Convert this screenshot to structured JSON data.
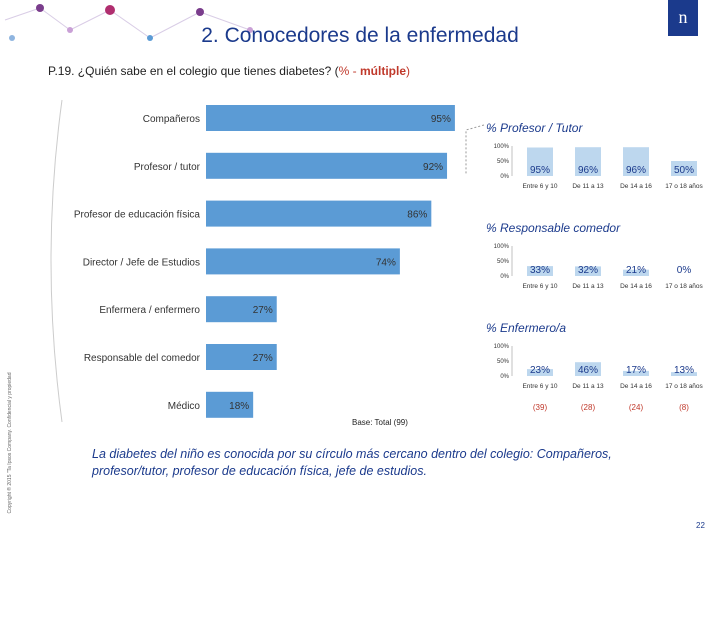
{
  "header": {
    "title": "2. Conocedores de la enfermedad",
    "logo_text": "n"
  },
  "question": {
    "prefix": "P.19. ¿Quién sabe en el colegio que tienes diabetes? (",
    "pct": "% -",
    "multiple": "múltiple",
    "suffix": ")"
  },
  "chart_data": [
    {
      "type": "bar",
      "orientation": "horizontal",
      "categories": [
        "Compañeros",
        "Profesor / tutor",
        "Profesor de educación física",
        "Director / Jefe de Estudios",
        "Enfermera / enfermero",
        "Responsable del comedor",
        "Médico"
      ],
      "values": [
        95,
        92,
        86,
        74,
        27,
        27,
        18
      ],
      "value_labels": [
        "95%",
        "92%",
        "86%",
        "74%",
        "27%",
        "27%",
        "18%"
      ],
      "xlim": [
        0,
        100
      ],
      "color": "#5b9bd5"
    },
    {
      "type": "bar",
      "title": "% Profesor / Tutor",
      "categories": [
        "Entre 6 y 10",
        "De 11 a 13",
        "De 14 a 16",
        "17 o 18 años"
      ],
      "values": [
        95,
        96,
        96,
        50
      ],
      "value_labels": [
        "95%",
        "96%",
        "96%",
        "50%"
      ],
      "yticks": [
        "100%",
        "50%",
        "0%"
      ],
      "ylim": [
        0,
        100
      ]
    },
    {
      "type": "bar",
      "title": "% Responsable comedor",
      "categories": [
        "Entre 6 y 10",
        "De 11 a 13",
        "De 14 a 16",
        "17 o 18 años"
      ],
      "values": [
        33,
        32,
        21,
        0
      ],
      "value_labels": [
        "33%",
        "32%",
        "21%",
        "0%"
      ],
      "yticks": [
        "100%",
        "50%",
        "0%"
      ],
      "ylim": [
        0,
        100
      ]
    },
    {
      "type": "bar",
      "title": "% Enfermero/a",
      "categories": [
        "Entre 6 y 10",
        "De 11 a 13",
        "De 14 a 16",
        "17 o 18 años"
      ],
      "values": [
        23,
        46,
        17,
        13
      ],
      "value_labels": [
        "23%",
        "46%",
        "17%",
        "13%"
      ],
      "yticks": [
        "100%",
        "50%",
        "0%"
      ],
      "ylim": [
        0,
        100
      ],
      "base_counts": [
        "(39)",
        "(28)",
        "(24)",
        "(8)"
      ]
    }
  ],
  "base_label": "Base: Total (99)",
  "copyright": "Copyright ® 2015 \"Ta Ipsos Company. Confidencial y propiedad",
  "conclusion": "La diabetes del niño es conocida por su círculo más cercano dentro del colegio: Compañeros, profesor/tutor, profesor de educación física, jefe de estudios.",
  "page_number": "22",
  "colors": {
    "brand": "#1b3a8c",
    "bar": "#5b9bd5",
    "small_bar": "#bdd7ee",
    "accent_red": "#c0392b"
  }
}
